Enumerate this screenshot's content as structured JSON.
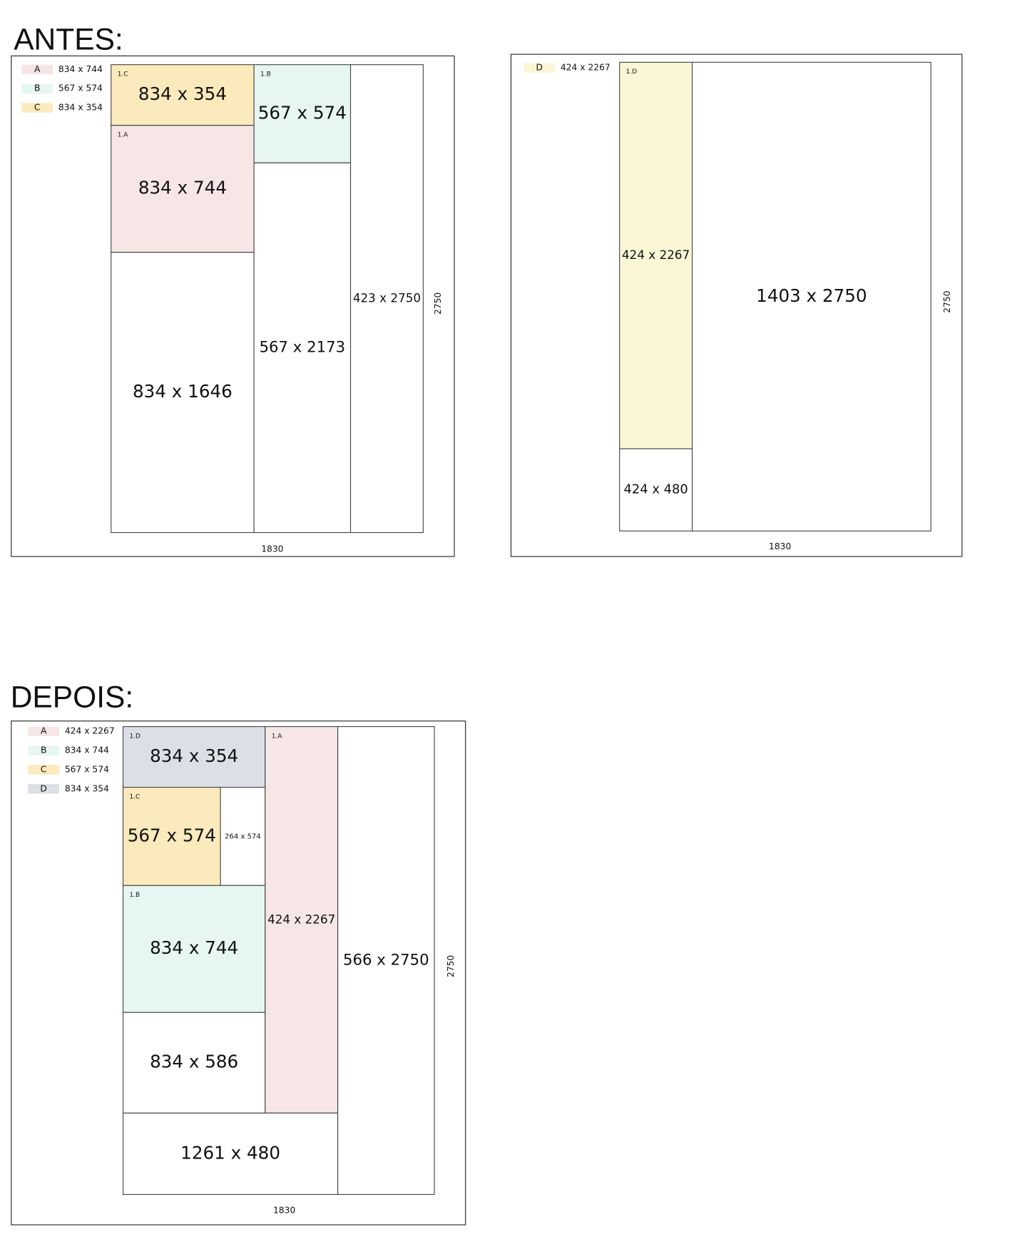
{
  "sections": [
    {
      "title": "ANTES:",
      "panels": [
        {
          "legend": [
            {
              "key": "A",
              "size": "834 x 744",
              "color": "#f7e6e6"
            },
            {
              "key": "B",
              "size": "567 x 574",
              "color": "#e6f7f2"
            },
            {
              "key": "C",
              "size": "834 x 354",
              "color": "#fbeabb"
            }
          ],
          "pieces": [
            {
              "tag": "1.C",
              "label": "834 x 354",
              "color": "#fbeabb"
            },
            {
              "tag": "1.A",
              "label": "834 x 744",
              "color": "#f7e6e6"
            },
            {
              "label": "834 x 1646"
            },
            {
              "tag": "1.B",
              "label": "567 x 574",
              "color": "#e6f7f2"
            },
            {
              "label": "567 x 2173"
            },
            {
              "label": "423 x 2750"
            }
          ],
          "width_label": "1830",
          "height_label": "2750"
        },
        {
          "legend": [
            {
              "key": "D",
              "size": "424 x 2267",
              "color": "#fbf7d6"
            }
          ],
          "pieces": [
            {
              "tag": "1.D",
              "label": "424 x 2267",
              "color": "#fbf7d6"
            },
            {
              "label": "424 x 480"
            },
            {
              "label": "1403 x 2750"
            }
          ],
          "width_label": "1830",
          "height_label": "2750"
        }
      ]
    },
    {
      "title": "DEPOIS:",
      "panels": [
        {
          "legend": [
            {
              "key": "A",
              "size": "424 x 2267",
              "color": "#f7e6e6"
            },
            {
              "key": "B",
              "size": "834 x 744",
              "color": "#e6f7f2"
            },
            {
              "key": "C",
              "size": "567 x 574",
              "color": "#fbeabb"
            },
            {
              "key": "D",
              "size": "834 x 354",
              "color": "#dcdfe5"
            }
          ],
          "pieces": [
            {
              "tag": "1.D",
              "label": "834 x 354",
              "color": "#dcdfe5"
            },
            {
              "tag": "1.C",
              "label": "567 x 574",
              "color": "#fbeabb"
            },
            {
              "label": "264 x 574"
            },
            {
              "tag": "1.B",
              "label": "834 x 744",
              "color": "#e6f7f2"
            },
            {
              "label": "834 x 586"
            },
            {
              "tag": "1.A",
              "label": "424 x 2267",
              "color": "#f7e6e6"
            },
            {
              "label": "1261 x 480"
            },
            {
              "label": "566 x 2750"
            }
          ],
          "width_label": "1830",
          "height_label": "2750"
        }
      ]
    }
  ]
}
